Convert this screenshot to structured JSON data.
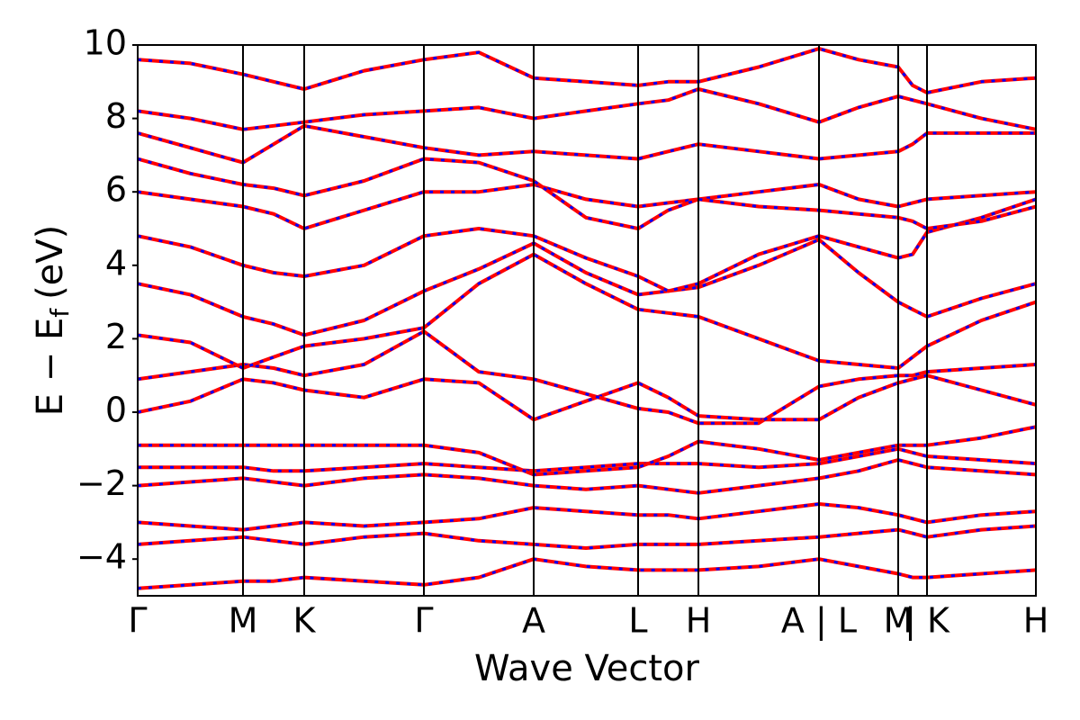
{
  "chart_data": {
    "type": "bands",
    "xlabel": "Wave Vector",
    "ylabel": {
      "main": "E − E",
      "sub": "f",
      "unit": "(eV)"
    },
    "x": [
      0,
      0.585,
      1.17,
      1.51,
      1.85,
      2.515,
      3.18,
      3.79,
      4.4,
      4.98,
      5.56,
      5.895,
      6.23,
      6.9,
      7.57,
      8.01,
      8.45,
      8.61,
      8.77,
      9.375,
      9.98
    ],
    "xlim": [
      0,
      9.98
    ],
    "xticks": [
      {
        "value": 0,
        "label": "Γ"
      },
      {
        "value": 1.17,
        "label": "M"
      },
      {
        "value": 1.85,
        "label": "K"
      },
      {
        "value": 3.18,
        "label": "Γ"
      },
      {
        "value": 4.4,
        "label": "A"
      },
      {
        "value": 5.56,
        "label": "L"
      },
      {
        "value": 6.23,
        "label": "H"
      },
      {
        "value": 7.57,
        "label": "A | L"
      },
      {
        "value": 8.45,
        "label": "M"
      },
      {
        "value": 8.77,
        "label": "| K"
      },
      {
        "value": 9.98,
        "label": "H"
      }
    ],
    "ylim": [
      -5,
      10
    ],
    "yticks": [
      {
        "value": -4,
        "label": "−4"
      },
      {
        "value": -2,
        "label": "−2"
      },
      0,
      2,
      4,
      6,
      8,
      10
    ],
    "line_color": "#ff0000",
    "dash_color": "#0000ff",
    "series": [
      {
        "values": [
          -4.8,
          -4.7,
          -4.6,
          -4.6,
          -4.5,
          -4.6,
          -4.7,
          -4.5,
          -4.0,
          -4.2,
          -4.3,
          -4.3,
          -4.3,
          -4.2,
          -4.0,
          -4.2,
          -4.4,
          -4.5,
          -4.5,
          -4.4,
          -4.3
        ]
      },
      {
        "values": [
          -3.6,
          -3.5,
          -3.4,
          -3.5,
          -3.6,
          -3.4,
          -3.3,
          -3.5,
          -3.6,
          -3.7,
          -3.6,
          -3.6,
          -3.6,
          -3.5,
          -3.4,
          -3.3,
          -3.2,
          -3.3,
          -3.4,
          -3.2,
          -3.1
        ]
      },
      {
        "values": [
          -3.0,
          -3.1,
          -3.2,
          -3.1,
          -3.0,
          -3.1,
          -3.0,
          -2.9,
          -2.6,
          -2.7,
          -2.8,
          -2.8,
          -2.9,
          -2.7,
          -2.5,
          -2.6,
          -2.8,
          -2.9,
          -3.0,
          -2.8,
          -2.7
        ]
      },
      {
        "values": [
          -2.0,
          -1.9,
          -1.8,
          -1.9,
          -2.0,
          -1.8,
          -1.7,
          -1.8,
          -2.0,
          -2.1,
          -2.0,
          -2.1,
          -2.2,
          -2.0,
          -1.8,
          -1.6,
          -1.3,
          -1.4,
          -1.5,
          -1.6,
          -1.7
        ]
      },
      {
        "values": [
          -1.5,
          -1.5,
          -1.5,
          -1.6,
          -1.6,
          -1.5,
          -1.4,
          -1.5,
          -1.6,
          -1.5,
          -1.4,
          -1.4,
          -1.4,
          -1.5,
          -1.4,
          -1.2,
          -1.0,
          -1.1,
          -1.2,
          -1.3,
          -1.4
        ]
      },
      {
        "values": [
          -0.9,
          -0.9,
          -0.9,
          -0.9,
          -0.9,
          -0.9,
          -0.9,
          -1.1,
          -1.7,
          -1.6,
          -1.5,
          -1.2,
          -0.8,
          -1.0,
          -1.3,
          -1.1,
          -0.9,
          -0.9,
          -0.9,
          -0.7,
          -0.4
        ]
      },
      {
        "values": [
          0.0,
          0.3,
          0.9,
          0.8,
          0.6,
          0.4,
          0.9,
          0.8,
          -0.2,
          0.3,
          0.8,
          0.4,
          -0.1,
          -0.2,
          -0.2,
          0.4,
          0.8,
          0.9,
          1.0,
          0.6,
          0.2
        ]
      },
      {
        "values": [
          0.9,
          1.1,
          1.3,
          1.2,
          1.0,
          1.3,
          2.2,
          1.1,
          0.9,
          0.5,
          0.1,
          0.0,
          -0.3,
          -0.3,
          0.7,
          0.9,
          1.0,
          1.0,
          1.1,
          1.2,
          1.3
        ]
      },
      {
        "values": [
          2.1,
          1.9,
          1.2,
          1.5,
          1.8,
          2.0,
          2.3,
          3.5,
          4.3,
          3.5,
          2.8,
          2.7,
          2.6,
          2.0,
          1.4,
          1.3,
          1.2,
          1.5,
          1.8,
          2.5,
          3.0
        ]
      },
      {
        "values": [
          3.5,
          3.2,
          2.6,
          2.4,
          2.1,
          2.5,
          3.3,
          3.9,
          4.6,
          3.8,
          3.2,
          3.3,
          3.4,
          4.0,
          4.7,
          3.8,
          3.0,
          2.8,
          2.6,
          3.1,
          3.5
        ]
      },
      {
        "values": [
          4.8,
          4.5,
          4.0,
          3.8,
          3.7,
          4.0,
          4.8,
          5.0,
          4.8,
          4.2,
          3.7,
          3.3,
          3.5,
          4.3,
          4.8,
          4.5,
          4.2,
          4.3,
          4.9,
          5.3,
          5.8
        ]
      },
      {
        "values": [
          6.0,
          5.8,
          5.6,
          5.4,
          5.0,
          5.5,
          6.0,
          6.0,
          6.2,
          5.8,
          5.6,
          5.7,
          5.8,
          6.0,
          6.2,
          5.8,
          5.6,
          5.7,
          5.8,
          5.9,
          6.0
        ]
      },
      {
        "values": [
          6.9,
          6.5,
          6.2,
          6.1,
          5.9,
          6.3,
          6.9,
          6.8,
          6.3,
          5.3,
          5.0,
          5.5,
          5.8,
          5.6,
          5.5,
          5.4,
          5.3,
          5.2,
          5.0,
          5.2,
          5.6
        ]
      },
      {
        "values": [
          7.6,
          7.2,
          6.8,
          7.3,
          7.8,
          7.5,
          7.2,
          7.0,
          7.1,
          7.0,
          6.9,
          7.1,
          7.3,
          7.1,
          6.9,
          7.0,
          7.1,
          7.3,
          7.6,
          7.6,
          7.6
        ]
      },
      {
        "values": [
          8.2,
          8.0,
          7.7,
          7.8,
          7.9,
          8.1,
          8.2,
          8.3,
          8.0,
          8.2,
          8.4,
          8.5,
          8.8,
          8.4,
          7.9,
          8.3,
          8.6,
          8.5,
          8.4,
          8.0,
          7.7
        ]
      },
      {
        "values": [
          9.6,
          9.5,
          9.2,
          9.0,
          8.8,
          9.3,
          9.6,
          9.8,
          9.1,
          9.0,
          8.9,
          9.0,
          9.0,
          9.4,
          9.9,
          9.6,
          9.4,
          8.9,
          8.7,
          9.0,
          9.1
        ]
      }
    ]
  }
}
